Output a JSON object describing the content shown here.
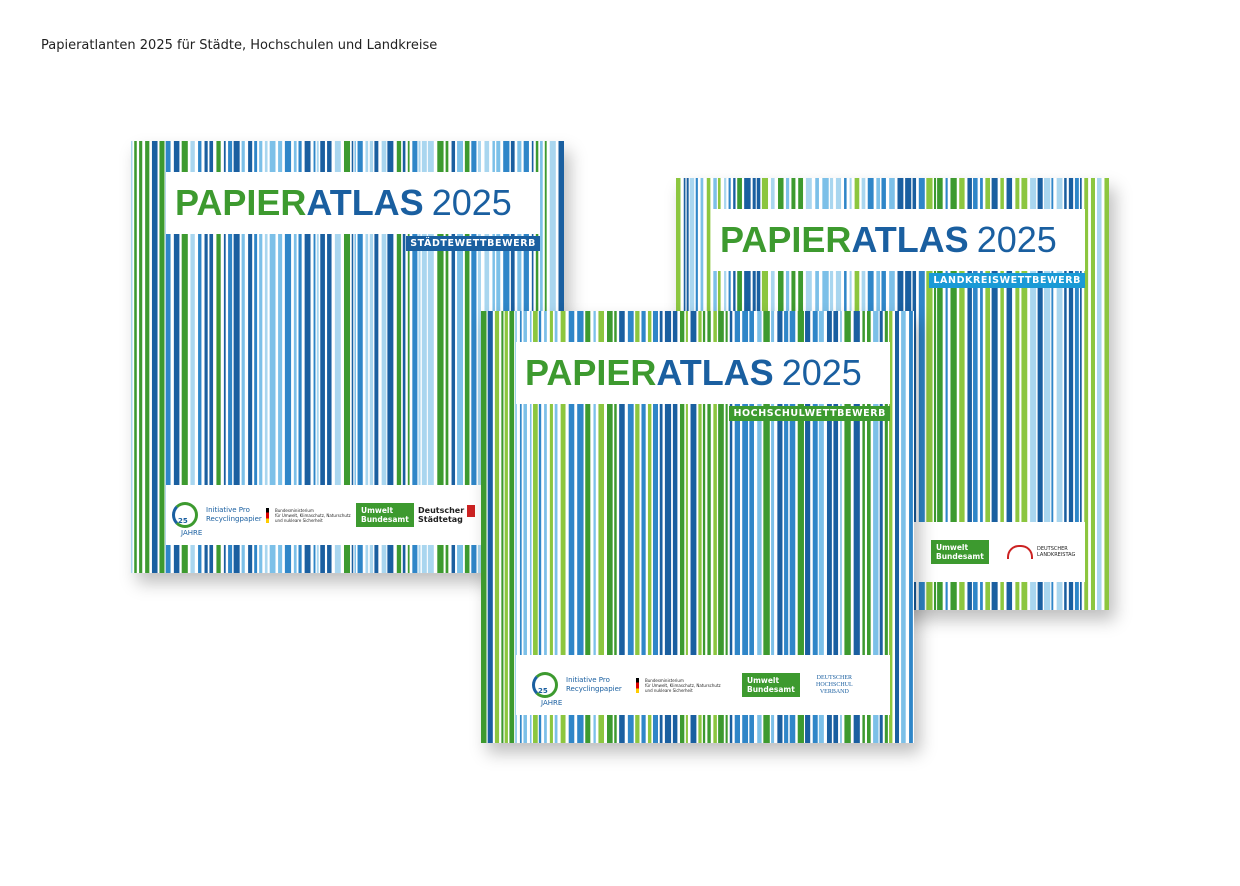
{
  "caption": "Papieratlanten 2025 für Städte, Hochschulen und Landkreise",
  "covers": [
    {
      "title": {
        "part1": "PAPIER",
        "part2": "ATLAS",
        "year": "2025"
      },
      "subtitle": "STÄDTEWETTBEWERB",
      "logos": [
        [
          "25",
          "JAHRE",
          "Initiative Pro",
          "Recyclingpapier"
        ],
        [
          "Bundesministerium",
          "für Umwelt, Klimaschutz, Naturschutz",
          "und nukleare Sicherheit"
        ],
        [
          "Umwelt",
          "Bundesamt"
        ],
        [
          "Deutscher",
          "Städtetag"
        ]
      ]
    },
    {
      "title": {
        "part1": "PAPIER",
        "part2": "ATLAS",
        "year": "2025"
      },
      "subtitle": "LANDKREISWETTBEWERB",
      "logos": [
        [
          "Umwelt",
          "Bundesamt"
        ],
        [
          "DEUTSCHER",
          "LANDKREISTAG"
        ]
      ]
    },
    {
      "title": {
        "part1": "PAPIER",
        "part2": "ATLAS",
        "year": "2025"
      },
      "subtitle": "HOCHSCHULWETTBEWERB",
      "logos": [
        [
          "25",
          "JAHRE",
          "Initiative Pro",
          "Recyclingpapier"
        ],
        [
          "Bundesministerium",
          "für Umwelt, Klimaschutz, Naturschutz",
          "und nukleare Sicherheit"
        ],
        [
          "Umwelt",
          "Bundesamt"
        ],
        [
          "DEUTSCHER",
          "HOCHSCHUL",
          "VERBAND"
        ]
      ]
    }
  ]
}
